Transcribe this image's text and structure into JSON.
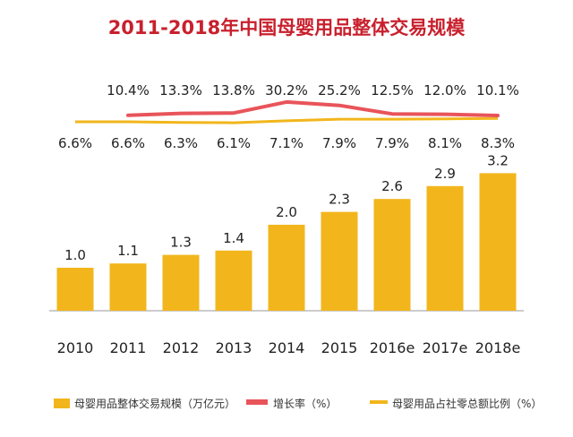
{
  "chart_data": {
    "type": "bar",
    "title": "2011-2018年中国母婴用品整体交易规模",
    "categories": [
      "2010",
      "2011",
      "2012",
      "2013",
      "2014",
      "2015",
      "2016e",
      "2017e",
      "2018e"
    ],
    "series": [
      {
        "name": "母婴用品整体交易规模（万亿元）",
        "kind": "bar",
        "values": [
          1.0,
          1.1,
          1.3,
          1.4,
          2.0,
          2.3,
          2.6,
          2.9,
          3.2
        ]
      },
      {
        "name": "增长率（%）",
        "kind": "line",
        "values": [
          null,
          10.4,
          13.3,
          13.8,
          30.2,
          25.2,
          12.5,
          12.0,
          10.1
        ]
      },
      {
        "name": "母婴用品占社零总额比例（%）",
        "kind": "line",
        "values": [
          6.6,
          6.6,
          6.3,
          6.1,
          7.1,
          7.9,
          7.9,
          8.1,
          8.3
        ]
      }
    ],
    "value_labels": {
      "bar": [
        "1.0",
        "1.1",
        "1.3",
        "1.4",
        "2.0",
        "2.3",
        "2.6",
        "2.9",
        "3.2"
      ],
      "growth": [
        "10.4%",
        "13.3%",
        "13.8%",
        "30.2%",
        "25.2%",
        "12.5%",
        "12.0%",
        "10.1%"
      ],
      "share": [
        "6.6%",
        "6.6%",
        "6.3%",
        "6.1%",
        "7.1%",
        "7.9%",
        "7.9%",
        "8.1%",
        "8.3%"
      ]
    },
    "ylim": [
      0,
      3.2
    ],
    "legend_position": "bottom"
  },
  "colors": {
    "bar": "#F2B61C",
    "growth_line": "#E8545A",
    "share_line": "#F2B61C",
    "title": "#C8202D",
    "text": "#222222",
    "axis": "#999999",
    "legend_text": "#333333"
  }
}
